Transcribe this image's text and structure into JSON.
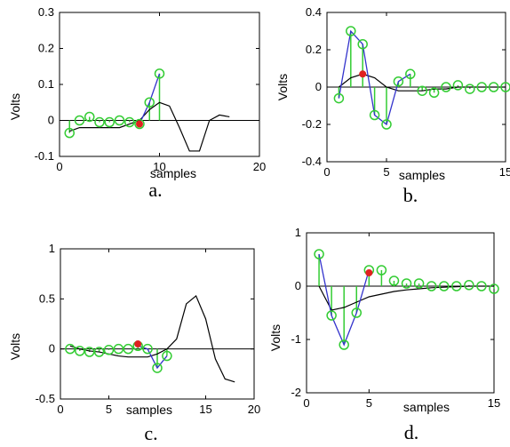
{
  "chart_data": [
    {
      "type": "line",
      "panel": "a.",
      "ylabel": "Volts",
      "xlabel": "samples",
      "xlim": [
        0,
        20
      ],
      "ylim": [
        -0.1,
        0.3
      ],
      "xticks": [
        0,
        10,
        20
      ],
      "yticks": [
        -0.1,
        0,
        0.1,
        0.2,
        0.3
      ],
      "x_tick_labels": [
        "0",
        "10",
        "20"
      ],
      "y_tick_labels": [
        "-0.1",
        "0",
        "0.1",
        "0.2",
        "0.3"
      ],
      "stem": {
        "x": [
          1,
          2,
          3,
          4,
          5,
          6,
          7,
          8,
          9,
          10
        ],
        "y": [
          -0.035,
          0.0,
          0.01,
          -0.005,
          -0.005,
          0.0,
          -0.005,
          -0.01,
          0.05,
          0.13
        ]
      },
      "blue_line": {
        "x": [
          8,
          9,
          10
        ],
        "y": [
          -0.01,
          0.05,
          0.13
        ]
      },
      "black_curve": {
        "x": [
          1,
          2,
          3,
          4,
          5,
          6,
          7,
          8,
          9,
          10,
          11,
          12,
          13,
          14,
          15,
          16,
          17
        ],
        "y": [
          -0.03,
          -0.02,
          -0.02,
          -0.02,
          -0.02,
          -0.02,
          -0.01,
          0.0,
          0.03,
          0.05,
          0.04,
          -0.02,
          -0.085,
          -0.085,
          0.0,
          0.015,
          0.01
        ]
      },
      "highlight": {
        "x": 8,
        "y": -0.01
      }
    },
    {
      "type": "line",
      "panel": "b.",
      "ylabel": "Volts",
      "xlabel": "samples",
      "xlim": [
        0,
        15
      ],
      "ylim": [
        -0.4,
        0.4
      ],
      "xticks": [
        0,
        5,
        15
      ],
      "yticks": [
        -0.4,
        -0.2,
        0,
        0.2,
        0.4
      ],
      "x_tick_labels": [
        "0",
        "5",
        "15"
      ],
      "y_tick_labels": [
        "-0.4",
        "-0.2",
        "0",
        "0.2",
        "0.4"
      ],
      "stem": {
        "x": [
          1,
          2,
          3,
          4,
          5,
          6,
          7,
          8,
          9,
          10,
          11,
          12,
          13,
          14,
          15
        ],
        "y": [
          -0.06,
          0.3,
          0.23,
          -0.15,
          -0.2,
          0.03,
          0.07,
          -0.02,
          -0.03,
          0.0,
          0.01,
          -0.01,
          0.0,
          0.0,
          0.0
        ]
      },
      "blue_line": {
        "x": [
          1,
          2,
          3,
          4,
          5,
          6,
          7
        ],
        "y": [
          -0.06,
          0.3,
          0.23,
          -0.15,
          -0.2,
          0.03,
          0.07
        ]
      },
      "black_curve": {
        "x": [
          1,
          2,
          3,
          4,
          5,
          6,
          7,
          8,
          9,
          10,
          11,
          12,
          13,
          14,
          15
        ],
        "y": [
          0.0,
          0.05,
          0.07,
          0.05,
          0.0,
          -0.02,
          -0.02,
          -0.02,
          -0.01,
          -0.01,
          0.0,
          0.0,
          0.0,
          0.0,
          0.0
        ]
      },
      "highlight": {
        "x": 3,
        "y": 0.07
      }
    },
    {
      "type": "line",
      "panel": "c.",
      "ylabel": "Volts",
      "xlabel": "samples",
      "xlim": [
        0,
        20
      ],
      "ylim": [
        -0.5,
        1
      ],
      "xticks": [
        0,
        5,
        15,
        20
      ],
      "yticks": [
        -0.5,
        0,
        0.5,
        1
      ],
      "x_tick_labels": [
        "0",
        "5",
        "15",
        "20"
      ],
      "y_tick_labels": [
        "-0.5",
        "0",
        "0.5",
        "1"
      ],
      "stem": {
        "x": [
          1,
          2,
          3,
          4,
          5,
          6,
          7,
          8,
          9,
          10,
          11
        ],
        "y": [
          0.0,
          -0.02,
          -0.03,
          -0.03,
          -0.01,
          0.0,
          0.0,
          0.03,
          0.0,
          -0.19,
          -0.07
        ]
      },
      "blue_line": {
        "x": [
          8,
          9,
          10,
          11
        ],
        "y": [
          0.03,
          0.0,
          -0.19,
          -0.07
        ]
      },
      "black_curve": {
        "x": [
          1,
          2,
          3,
          4,
          5,
          6,
          7,
          8,
          9,
          10,
          11,
          12,
          13,
          14,
          15,
          16,
          17,
          18
        ],
        "y": [
          0.03,
          0.0,
          -0.02,
          -0.03,
          -0.05,
          -0.07,
          -0.08,
          -0.08,
          -0.08,
          -0.05,
          0.0,
          0.1,
          0.45,
          0.53,
          0.3,
          -0.1,
          -0.3,
          -0.33
        ]
      },
      "highlight": {
        "x": 8,
        "y": 0.05
      }
    },
    {
      "type": "line",
      "panel": "d.",
      "ylabel": "Volts",
      "xlabel": "samples",
      "xlim": [
        0,
        15
      ],
      "ylim": [
        -2,
        1
      ],
      "xticks": [
        0,
        5,
        15
      ],
      "yticks": [
        -2,
        -1,
        0,
        1
      ],
      "x_tick_labels": [
        "0",
        "5",
        "15"
      ],
      "y_tick_labels": [
        "-2",
        "-1",
        "0",
        "1"
      ],
      "stem": {
        "x": [
          1,
          2,
          3,
          4,
          5,
          6,
          7,
          8,
          9,
          10,
          11,
          12,
          13,
          14,
          15
        ],
        "y": [
          0.6,
          -0.55,
          -1.1,
          -0.5,
          0.3,
          0.3,
          0.1,
          0.05,
          0.05,
          0.0,
          0.0,
          0.0,
          0.02,
          0.0,
          -0.05
        ]
      },
      "blue_line": {
        "x": [
          1,
          2,
          3,
          4,
          5
        ],
        "y": [
          0.6,
          -0.55,
          -1.1,
          -0.5,
          0.3
        ]
      },
      "black_curve": {
        "x": [
          1,
          2,
          3,
          4,
          5,
          6,
          7,
          8,
          9,
          10,
          11,
          12,
          13,
          14,
          15
        ],
        "y": [
          0.0,
          -0.45,
          -0.4,
          -0.3,
          -0.2,
          -0.15,
          -0.1,
          -0.07,
          -0.05,
          -0.03,
          -0.02,
          -0.01,
          0.0,
          0.0,
          0.0
        ]
      },
      "highlight": {
        "x": 5,
        "y": 0.25
      }
    }
  ],
  "colors": {
    "stem": "#33cc33",
    "marker": "#33cc33",
    "blue_line": "#3333cc",
    "black_curve": "#000000",
    "highlight": "#e02020",
    "axis": "#000000"
  }
}
